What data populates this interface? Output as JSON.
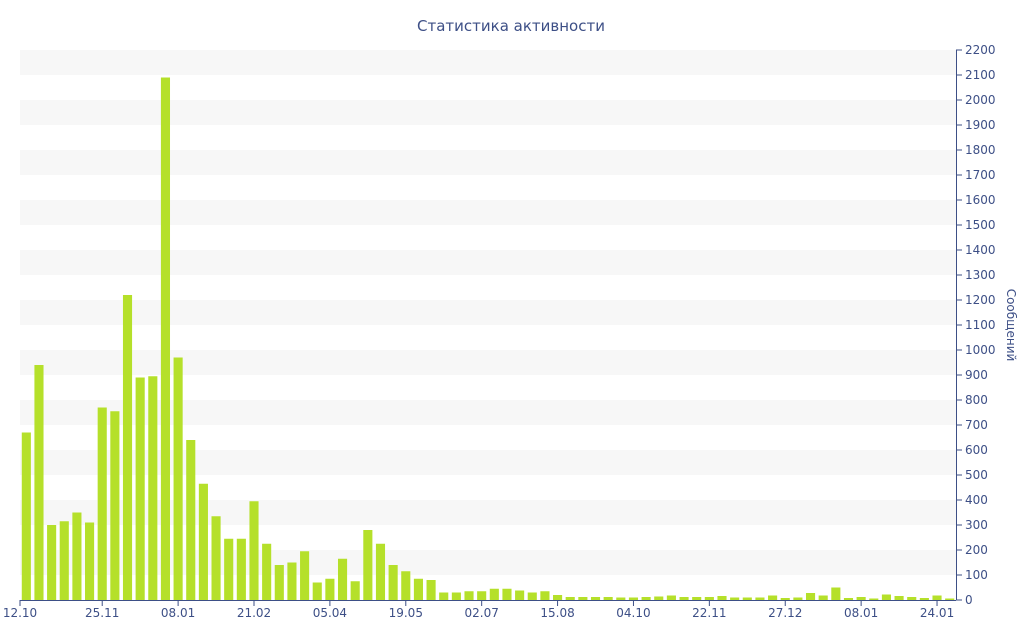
{
  "chart_data": {
    "type": "bar",
    "title": "Статистика активности",
    "ylabel": "Сообщений",
    "ylim": [
      0,
      2200
    ],
    "y_ticks": [
      0,
      100,
      200,
      300,
      400,
      500,
      600,
      700,
      800,
      900,
      1000,
      1100,
      1200,
      1300,
      1400,
      1500,
      1600,
      1700,
      1800,
      1900,
      2000,
      2100,
      2200
    ],
    "y_axis_position": "right",
    "grid": "alternating-horizontal-bands",
    "bar_color": "#b5e02a",
    "band_color": "#f7f7f7",
    "axis_color": "#3d4f86",
    "x_tick_labels": [
      {
        "label": "12.10",
        "index": 0
      },
      {
        "label": "25.11",
        "index": 6
      },
      {
        "label": "08.01",
        "index": 12
      },
      {
        "label": "21.02",
        "index": 18
      },
      {
        "label": "05.04",
        "index": 24
      },
      {
        "label": "19.05",
        "index": 30
      },
      {
        "label": "02.07",
        "index": 36
      },
      {
        "label": "15.08",
        "index": 42
      },
      {
        "label": "04.10",
        "index": 48
      },
      {
        "label": "22.11",
        "index": 54
      },
      {
        "label": "27.12",
        "index": 60
      },
      {
        "label": "08.01",
        "index": 66
      },
      {
        "label": "24.01",
        "index": 72
      }
    ],
    "values": [
      670,
      940,
      300,
      315,
      350,
      310,
      770,
      755,
      1220,
      890,
      895,
      2090,
      970,
      640,
      465,
      335,
      245,
      245,
      395,
      225,
      140,
      150,
      195,
      70,
      85,
      165,
      75,
      280,
      225,
      140,
      115,
      85,
      80,
      30,
      30,
      35,
      35,
      45,
      45,
      38,
      30,
      35,
      20,
      12,
      12,
      12,
      12,
      10,
      10,
      12,
      14,
      18,
      12,
      12,
      12,
      16,
      10,
      10,
      10,
      18,
      8,
      10,
      28,
      18,
      50,
      8,
      12,
      6,
      22,
      16,
      12,
      8,
      18,
      6
    ]
  }
}
